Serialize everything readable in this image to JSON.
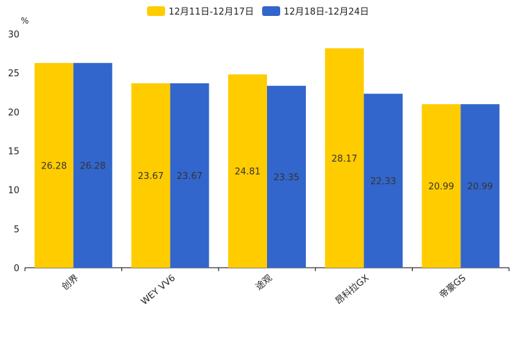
{
  "chart_data": {
    "type": "bar",
    "title": "",
    "xlabel": "",
    "ylabel": "%",
    "ylim": [
      0,
      30
    ],
    "yticks": [
      0,
      5,
      10,
      15,
      20,
      25,
      30
    ],
    "grid": false,
    "legend_position": "top-center",
    "categories": [
      "创界",
      "WEY VV6",
      "途观",
      "昂科拉GX",
      "帝豪GS"
    ],
    "series": [
      {
        "name": "12月11日-12月17日",
        "color": "#ffcc00",
        "values": [
          26.28,
          23.67,
          24.81,
          28.17,
          20.99
        ],
        "labels": [
          "26.28",
          "23.67",
          "24.81",
          "28.17",
          "20.99"
        ]
      },
      {
        "name": "12月18日-12月24日",
        "color": "#3366cc",
        "values": [
          26.28,
          23.67,
          23.35,
          22.33,
          20.99
        ],
        "labels": [
          "26.28",
          "23.67",
          "23.35",
          "22.33",
          "20.99"
        ]
      }
    ]
  }
}
